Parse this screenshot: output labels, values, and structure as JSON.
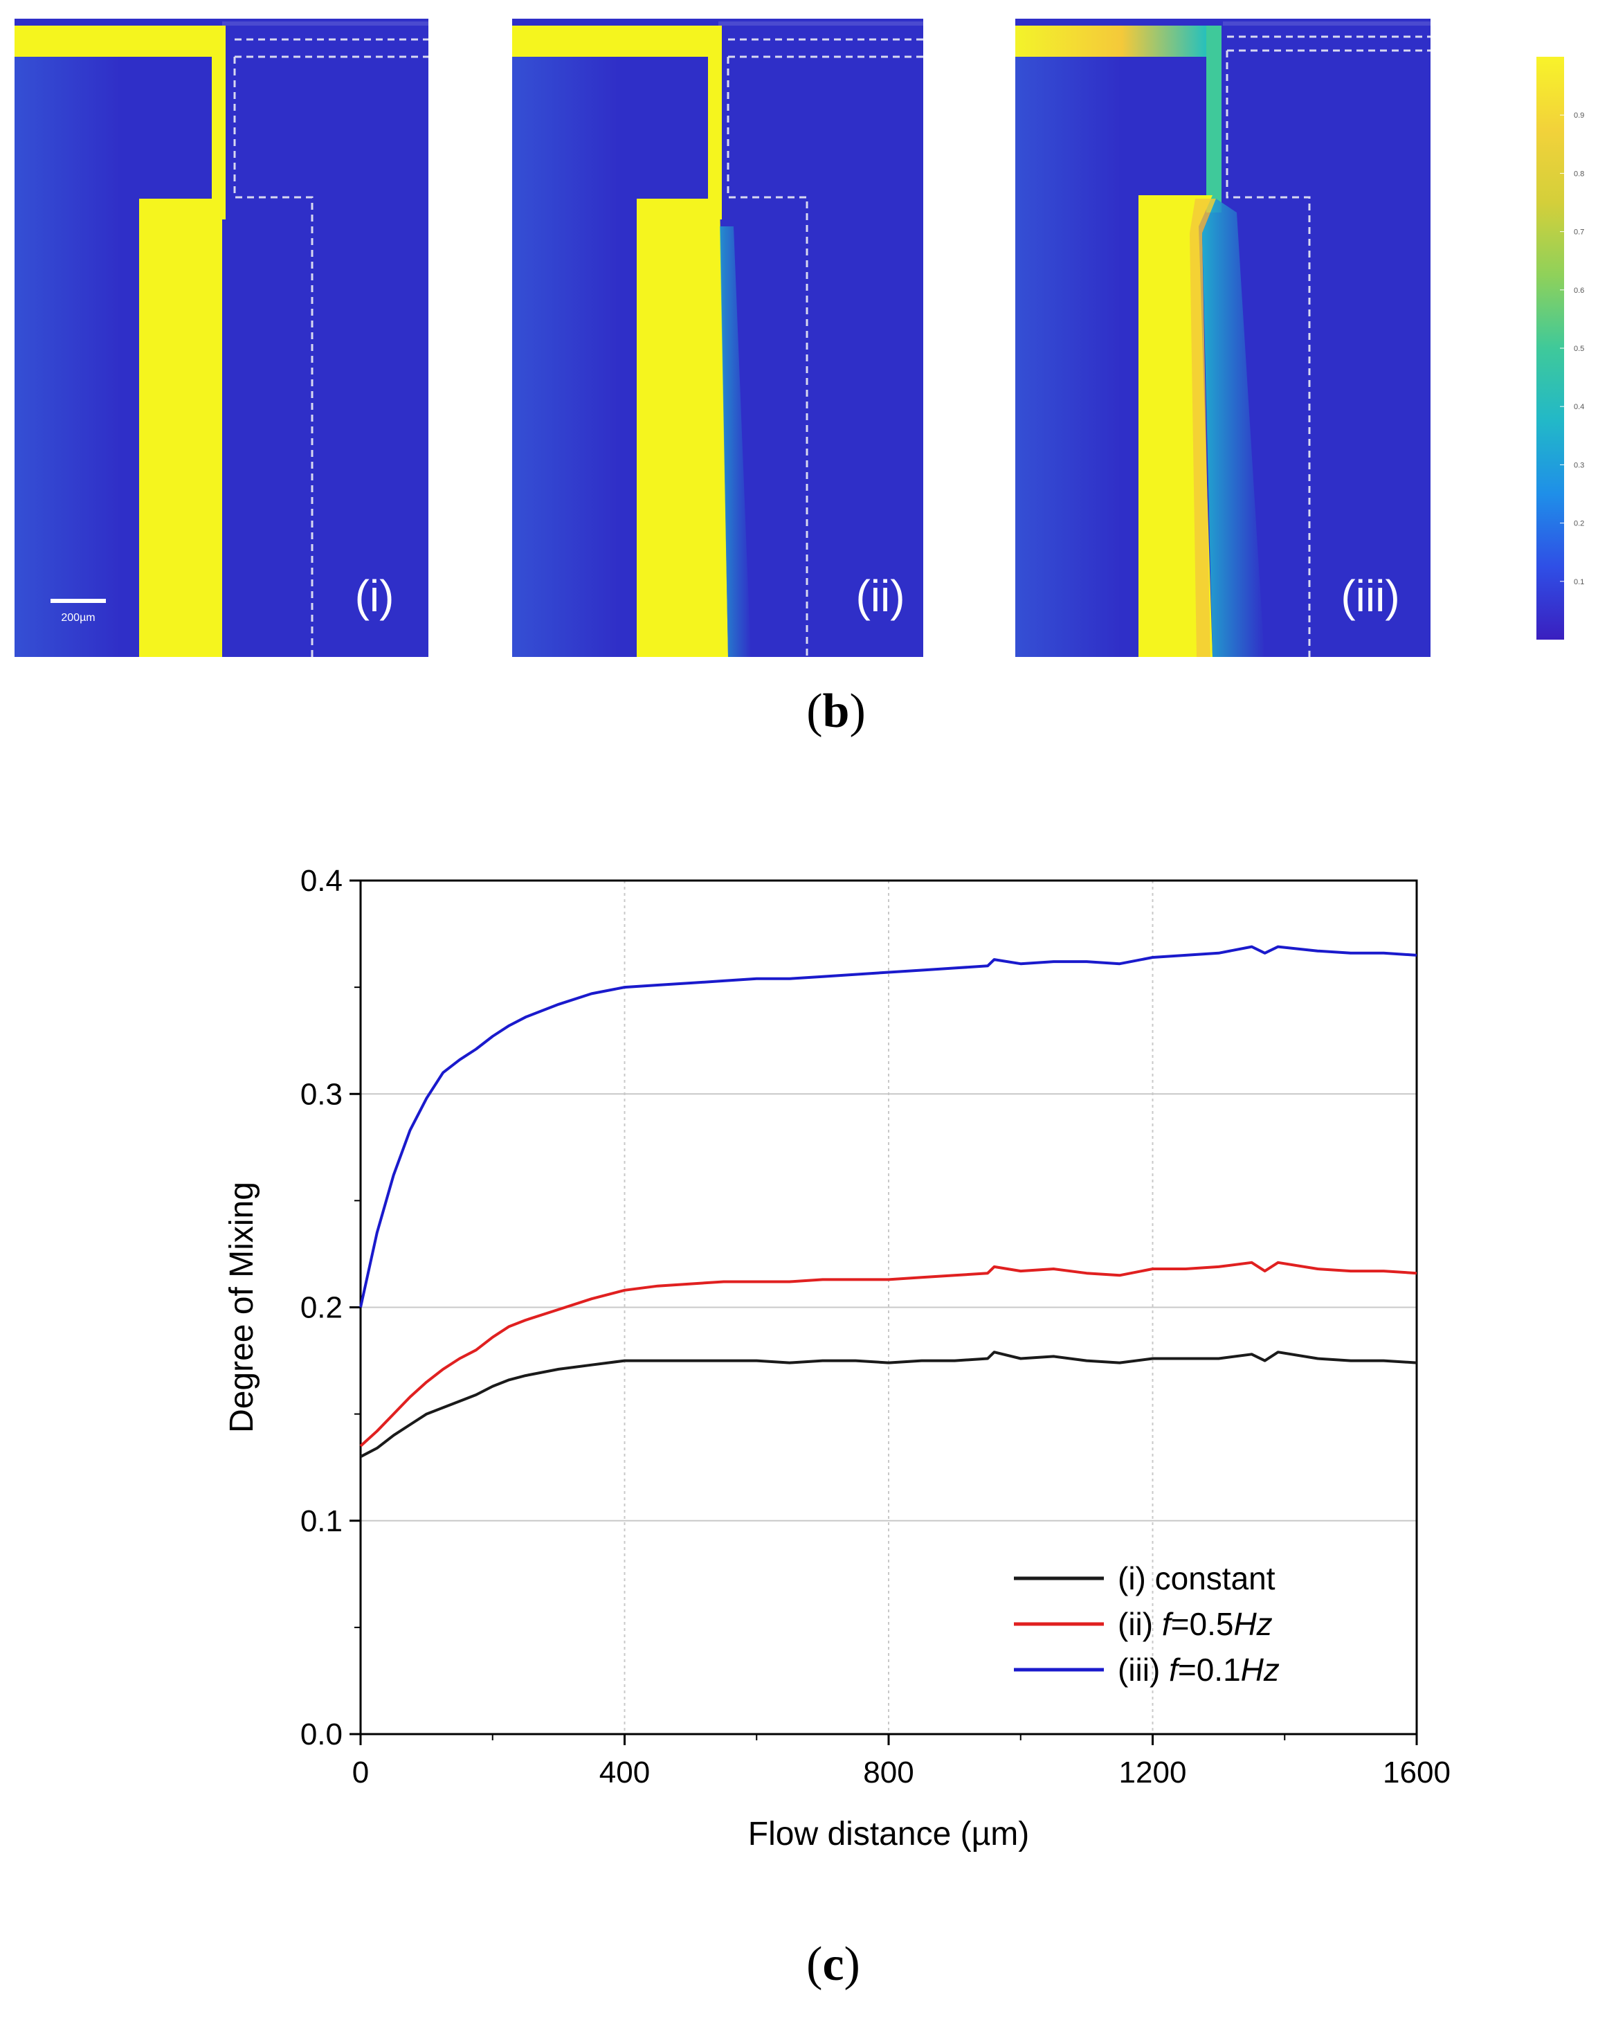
{
  "figure": {
    "panel_b_label": "b",
    "panel_c_label": "c"
  },
  "simulation_panels": [
    {
      "label": "(i)"
    },
    {
      "label": "(ii)"
    },
    {
      "label": "(iii)"
    }
  ],
  "scale_bar": {
    "label": "200µm"
  },
  "colorbar": {
    "ticks": [
      "0.9",
      "0.8",
      "0.7",
      "0.6",
      "0.5",
      "0.4",
      "0.3",
      "0.2",
      "0.1"
    ],
    "stops": [
      "#3a1fbf",
      "#2f4fe6",
      "#1f8fe8",
      "#22b8c8",
      "#3fc99a",
      "#8fd15a",
      "#d4cf3a",
      "#f2d23a",
      "#f8f32a"
    ]
  },
  "chart_data": {
    "type": "line",
    "xlabel": "Flow distance (µm)",
    "ylabel": "Degree of Mixing",
    "xlim": [
      0,
      1600
    ],
    "ylim": [
      0.0,
      0.4
    ],
    "xticks": [
      0,
      400,
      800,
      1200,
      1600
    ],
    "yticks": [
      0.0,
      0.1,
      0.2,
      0.3,
      0.4
    ],
    "xtick_labels": [
      "0",
      "400",
      "800",
      "1200",
      "1600"
    ],
    "ytick_labels": [
      "0.0",
      "0.1",
      "0.2",
      "0.3",
      "0.4"
    ],
    "grid": true,
    "legend_position": "bottom-right",
    "series": [
      {
        "name": "(i) constant",
        "color": "#1a1a1a",
        "x": [
          0,
          25,
          50,
          75,
          100,
          125,
          150,
          175,
          200,
          225,
          250,
          300,
          350,
          400,
          450,
          500,
          550,
          600,
          650,
          700,
          750,
          800,
          850,
          900,
          950,
          960,
          1000,
          1050,
          1100,
          1150,
          1200,
          1250,
          1300,
          1350,
          1370,
          1390,
          1450,
          1500,
          1550,
          1600
        ],
        "y": [
          0.13,
          0.134,
          0.14,
          0.145,
          0.15,
          0.153,
          0.156,
          0.159,
          0.163,
          0.166,
          0.168,
          0.171,
          0.173,
          0.175,
          0.175,
          0.175,
          0.175,
          0.175,
          0.174,
          0.175,
          0.175,
          0.174,
          0.175,
          0.175,
          0.176,
          0.179,
          0.176,
          0.177,
          0.175,
          0.174,
          0.176,
          0.176,
          0.176,
          0.178,
          0.175,
          0.179,
          0.176,
          0.175,
          0.175,
          0.174
        ]
      },
      {
        "name": "(ii) f=0.5Hz",
        "color": "#e02020",
        "x": [
          0,
          25,
          50,
          75,
          100,
          125,
          150,
          175,
          200,
          225,
          250,
          300,
          350,
          400,
          450,
          500,
          550,
          600,
          650,
          700,
          750,
          800,
          850,
          900,
          950,
          960,
          1000,
          1050,
          1100,
          1150,
          1200,
          1250,
          1300,
          1350,
          1370,
          1390,
          1450,
          1500,
          1550,
          1600
        ],
        "y": [
          0.135,
          0.142,
          0.15,
          0.158,
          0.165,
          0.171,
          0.176,
          0.18,
          0.186,
          0.191,
          0.194,
          0.199,
          0.204,
          0.208,
          0.21,
          0.211,
          0.212,
          0.212,
          0.212,
          0.213,
          0.213,
          0.213,
          0.214,
          0.215,
          0.216,
          0.219,
          0.217,
          0.218,
          0.216,
          0.215,
          0.218,
          0.218,
          0.219,
          0.221,
          0.217,
          0.221,
          0.218,
          0.217,
          0.217,
          0.216
        ]
      },
      {
        "name": "(iii) f=0.1Hz",
        "color": "#1a1acc",
        "x": [
          0,
          25,
          50,
          75,
          100,
          125,
          150,
          175,
          200,
          225,
          250,
          300,
          350,
          400,
          450,
          500,
          550,
          600,
          650,
          700,
          750,
          800,
          850,
          900,
          950,
          960,
          1000,
          1050,
          1100,
          1150,
          1200,
          1250,
          1300,
          1350,
          1370,
          1390,
          1450,
          1500,
          1550,
          1600
        ],
        "y": [
          0.2,
          0.235,
          0.262,
          0.283,
          0.298,
          0.31,
          0.316,
          0.321,
          0.327,
          0.332,
          0.336,
          0.342,
          0.347,
          0.35,
          0.351,
          0.352,
          0.353,
          0.354,
          0.354,
          0.355,
          0.356,
          0.357,
          0.358,
          0.359,
          0.36,
          0.363,
          0.361,
          0.362,
          0.362,
          0.361,
          0.364,
          0.365,
          0.366,
          0.369,
          0.366,
          0.369,
          0.367,
          0.366,
          0.366,
          0.365
        ]
      }
    ]
  }
}
